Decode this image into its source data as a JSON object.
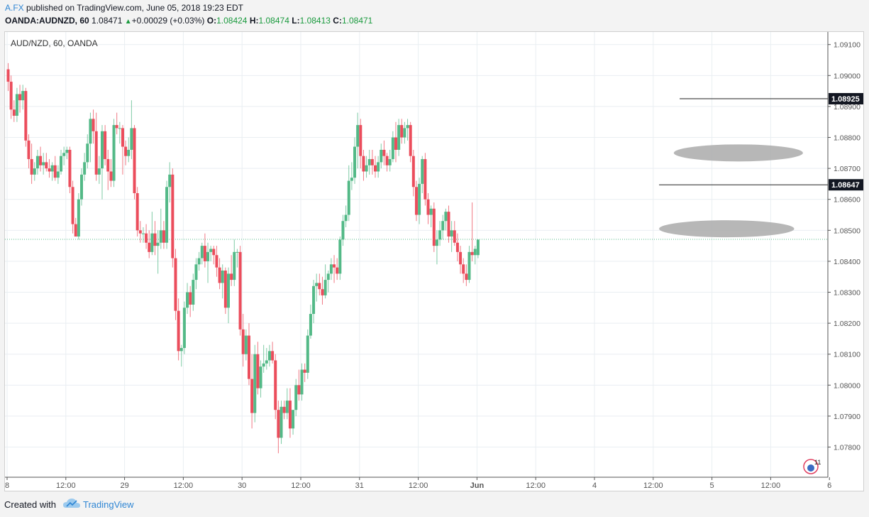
{
  "header": {
    "author": "A.FX",
    "published_text": "published on TradingView.com, June 05, 2018 19:23 EDT",
    "symbol": "OANDA:AUDNZD, 60",
    "last": "1.08471",
    "change": "+0.00029 (+0.03%)",
    "o_label": "O:",
    "o_value": "1.08424",
    "h_label": "H:",
    "h_value": "1.08474",
    "l_label": "L:",
    "l_value": "1.08413",
    "c_label": "C:",
    "c_value": "1.08471"
  },
  "footer": {
    "created_with": "Created with",
    "brand": "TradingView"
  },
  "colors": {
    "up": "#53b987",
    "down": "#eb4d5c",
    "grid": "#e9eef2",
    "axis": "#555555",
    "ellipse": "#aaaaaa"
  },
  "chart_data": {
    "type": "candlestick",
    "title": "AUD/NZD, 60, OANDA",
    "y_range": [
      1.0772,
      1.0912
    ],
    "y_ticks": [
      "1.09100",
      "1.09000",
      "1.08900",
      "1.08800",
      "1.08700",
      "1.08600",
      "1.08500",
      "1.08400",
      "1.08300",
      "1.08200",
      "1.08100",
      "1.08000",
      "1.07900",
      "1.07800"
    ],
    "y_tick_values": [
      1.091,
      1.09,
      1.089,
      1.088,
      1.087,
      1.086,
      1.085,
      1.084,
      1.083,
      1.082,
      1.081,
      1.08,
      1.079,
      1.078
    ],
    "x_ticks": [
      {
        "label": "8",
        "bar": 0
      },
      {
        "label": "12:00",
        "bar": 20
      },
      {
        "label": "29",
        "bar": 40
      },
      {
        "label": "12:00",
        "bar": 60
      },
      {
        "label": "30",
        "bar": 80
      },
      {
        "label": "12:00",
        "bar": 100
      },
      {
        "label": "31",
        "bar": 120
      },
      {
        "label": "12:00",
        "bar": 140
      },
      {
        "label": "Jun",
        "bar": 160
      },
      {
        "label": "12:00",
        "bar": 180
      },
      {
        "label": "4",
        "bar": 200
      },
      {
        "label": "12:00",
        "bar": 220
      },
      {
        "label": "5",
        "bar": 240
      },
      {
        "label": "12:00",
        "bar": 260
      },
      {
        "label": "6",
        "bar": 280
      }
    ],
    "levels": [
      {
        "label": "1.08925",
        "value": 1.08925,
        "from_bar": 229
      },
      {
        "label": "1.08647",
        "value": 1.08647,
        "from_bar": 222
      }
    ],
    "current_price": 1.08471,
    "zones": [
      {
        "value": 1.0875,
        "from_bar": 227,
        "to_bar": 271
      },
      {
        "value": 1.08505,
        "from_bar": 222,
        "to_bar": 268
      }
    ],
    "badge": "11",
    "candles": [
      [
        1.0902,
        1.0904,
        1.0895,
        1.0898
      ],
      [
        1.0898,
        1.09,
        1.0886,
        1.0889
      ],
      [
        1.0889,
        1.0892,
        1.0885,
        1.0887
      ],
      [
        1.0887,
        1.0896,
        1.0885,
        1.0894
      ],
      [
        1.0894,
        1.0897,
        1.0888,
        1.0892
      ],
      [
        1.0892,
        1.0897,
        1.0889,
        1.0895
      ],
      [
        1.0895,
        1.0896,
        1.0877,
        1.0879
      ],
      [
        1.0879,
        1.0881,
        1.087,
        1.0873
      ],
      [
        1.0873,
        1.0878,
        1.0865,
        1.0868
      ],
      [
        1.0868,
        1.0872,
        1.0866,
        1.087
      ],
      [
        1.087,
        1.0876,
        1.0868,
        1.0874
      ],
      [
        1.0874,
        1.0877,
        1.0869,
        1.0871
      ],
      [
        1.0871,
        1.0875,
        1.0868,
        1.0872
      ],
      [
        1.0872,
        1.0875,
        1.0869,
        1.087
      ],
      [
        1.087,
        1.0873,
        1.0867,
        1.0869
      ],
      [
        1.0869,
        1.0872,
        1.0866,
        1.0871
      ],
      [
        1.0871,
        1.0874,
        1.0866,
        1.0867
      ],
      [
        1.0867,
        1.0871,
        1.0865,
        1.0869
      ],
      [
        1.0869,
        1.0876,
        1.0868,
        1.0874
      ],
      [
        1.0874,
        1.0877,
        1.0871,
        1.0875
      ],
      [
        1.0875,
        1.0877,
        1.0873,
        1.0876
      ],
      [
        1.0876,
        1.0877,
        1.0862,
        1.0864
      ],
      [
        1.0864,
        1.0866,
        1.0849,
        1.0852
      ],
      [
        1.0852,
        1.0854,
        1.0848,
        1.0848
      ],
      [
        1.0848,
        1.0862,
        1.0847,
        1.086
      ],
      [
        1.086,
        1.087,
        1.0858,
        1.0868
      ],
      [
        1.0868,
        1.0875,
        1.0866,
        1.0872
      ],
      [
        1.0872,
        1.0881,
        1.087,
        1.0878
      ],
      [
        1.0878,
        1.0888,
        1.0872,
        1.0886
      ],
      [
        1.0886,
        1.0889,
        1.0878,
        1.0882
      ],
      [
        1.0882,
        1.0888,
        1.0866,
        1.0868
      ],
      [
        1.0868,
        1.0874,
        1.0865,
        1.087
      ],
      [
        1.087,
        1.0884,
        1.086,
        1.0882
      ],
      [
        1.0882,
        1.0884,
        1.0871,
        1.0873
      ],
      [
        1.0873,
        1.0876,
        1.0863,
        1.0869
      ],
      [
        1.0869,
        1.0873,
        1.0864,
        1.0866
      ],
      [
        1.0866,
        1.0886,
        1.0864,
        1.0884
      ],
      [
        1.0884,
        1.0888,
        1.0881,
        1.0883
      ],
      [
        1.0883,
        1.0885,
        1.0878,
        1.0883
      ],
      [
        1.0883,
        1.0884,
        1.0868,
        1.0877
      ],
      [
        1.0877,
        1.0879,
        1.0871,
        1.0874
      ],
      [
        1.0874,
        1.088,
        1.0872,
        1.0876
      ],
      [
        1.0876,
        1.0892,
        1.0873,
        1.0883
      ],
      [
        1.0883,
        1.0884,
        1.086,
        1.0862
      ],
      [
        1.0862,
        1.0864,
        1.0848,
        1.085
      ],
      [
        1.085,
        1.0853,
        1.0846,
        1.0849
      ],
      [
        1.0849,
        1.0851,
        1.0846,
        1.0849
      ],
      [
        1.0849,
        1.0852,
        1.0844,
        1.0846
      ],
      [
        1.0846,
        1.085,
        1.0841,
        1.0843
      ],
      [
        1.0843,
        1.0856,
        1.0842,
        1.0849
      ],
      [
        1.0849,
        1.0853,
        1.0842,
        1.0845
      ],
      [
        1.0845,
        1.085,
        1.0836,
        1.0846
      ],
      [
        1.0846,
        1.0857,
        1.0844,
        1.085
      ],
      [
        1.085,
        1.0853,
        1.0844,
        1.0846
      ],
      [
        1.0846,
        1.0866,
        1.0844,
        1.0864
      ],
      [
        1.0864,
        1.0872,
        1.0859,
        1.0868
      ],
      [
        1.0868,
        1.087,
        1.0838,
        1.0841
      ],
      [
        1.0841,
        1.0844,
        1.0821,
        1.0824
      ],
      [
        1.0824,
        1.0828,
        1.0808,
        1.0811
      ],
      [
        1.0811,
        1.0813,
        1.0806,
        1.0812
      ],
      [
        1.0812,
        1.0827,
        1.081,
        1.0825
      ],
      [
        1.0825,
        1.0833,
        1.0823,
        1.083
      ],
      [
        1.083,
        1.0832,
        1.0822,
        1.0826
      ],
      [
        1.0826,
        1.0836,
        1.0824,
        1.0834
      ],
      [
        1.0834,
        1.0841,
        1.0831,
        1.0839
      ],
      [
        1.0839,
        1.0843,
        1.0837,
        1.0841
      ],
      [
        1.0841,
        1.0846,
        1.0839,
        1.0845
      ],
      [
        1.0845,
        1.0849,
        1.0838,
        1.084
      ],
      [
        1.084,
        1.0846,
        1.0833,
        1.0843
      ],
      [
        1.0843,
        1.0845,
        1.084,
        1.0844
      ],
      [
        1.0844,
        1.0845,
        1.0839,
        1.0842
      ],
      [
        1.0842,
        1.0845,
        1.0835,
        1.0838
      ],
      [
        1.0838,
        1.0841,
        1.0831,
        1.0833
      ],
      [
        1.0833,
        1.0839,
        1.0828,
        1.0837
      ],
      [
        1.0837,
        1.0838,
        1.0823,
        1.0825
      ],
      [
        1.0825,
        1.0838,
        1.082,
        1.0836
      ],
      [
        1.0836,
        1.0842,
        1.0832,
        1.0834
      ],
      [
        1.0834,
        1.0847,
        1.0832,
        1.0843
      ],
      [
        1.0843,
        1.0844,
        1.0838,
        1.0843
      ],
      [
        1.0843,
        1.0845,
        1.0816,
        1.0818
      ],
      [
        1.0818,
        1.0823,
        1.0806,
        1.081
      ],
      [
        1.081,
        1.0818,
        1.0808,
        1.0816
      ],
      [
        1.0816,
        1.082,
        1.08,
        1.0802
      ],
      [
        1.0802,
        1.081,
        1.0786,
        1.0791
      ],
      [
        1.0791,
        1.0813,
        1.0788,
        1.081
      ],
      [
        1.081,
        1.0814,
        1.0797,
        1.0799
      ],
      [
        1.0799,
        1.0808,
        1.0796,
        1.0806
      ],
      [
        1.0806,
        1.0813,
        1.0804,
        1.0807
      ],
      [
        1.0807,
        1.0812,
        1.0805,
        1.0808
      ],
      [
        1.0808,
        1.0813,
        1.0806,
        1.0811
      ],
      [
        1.0811,
        1.0814,
        1.0807,
        1.0808
      ],
      [
        1.0808,
        1.081,
        1.0789,
        1.0792
      ],
      [
        1.0792,
        1.0795,
        1.0778,
        1.0783
      ],
      [
        1.0783,
        1.0795,
        1.0781,
        1.0793
      ],
      [
        1.0793,
        1.0795,
        1.0789,
        1.0791
      ],
      [
        1.0791,
        1.0799,
        1.0789,
        1.0795
      ],
      [
        1.0795,
        1.0799,
        1.0783,
        1.0786
      ],
      [
        1.0786,
        1.0792,
        1.0784,
        1.0792
      ],
      [
        1.0792,
        1.0802,
        1.079,
        1.08
      ],
      [
        1.08,
        1.0805,
        1.0795,
        1.0797
      ],
      [
        1.0797,
        1.0807,
        1.0795,
        1.0805
      ],
      [
        1.0805,
        1.0807,
        1.0801,
        1.0804
      ],
      [
        1.0804,
        1.0818,
        1.0802,
        1.0816
      ],
      [
        1.0816,
        1.0826,
        1.0815,
        1.0823
      ],
      [
        1.0823,
        1.0834,
        1.082,
        1.0832
      ],
      [
        1.0832,
        1.0836,
        1.0827,
        1.0833
      ],
      [
        1.0833,
        1.0836,
        1.0829,
        1.0831
      ],
      [
        1.0831,
        1.0835,
        1.0826,
        1.0829
      ],
      [
        1.0829,
        1.0839,
        1.0828,
        1.0834
      ],
      [
        1.0834,
        1.0837,
        1.083,
        1.0836
      ],
      [
        1.0836,
        1.0841,
        1.0834,
        1.0839
      ],
      [
        1.0839,
        1.0842,
        1.0833,
        1.0838
      ],
      [
        1.0838,
        1.0841,
        1.0834,
        1.0836
      ],
      [
        1.0836,
        1.0848,
        1.0834,
        1.0847
      ],
      [
        1.0847,
        1.0855,
        1.0845,
        1.0853
      ],
      [
        1.0853,
        1.0858,
        1.0851,
        1.0855
      ],
      [
        1.0855,
        1.0871,
        1.0853,
        1.0866
      ],
      [
        1.0866,
        1.0872,
        1.0863,
        1.0867
      ],
      [
        1.0867,
        1.088,
        1.0865,
        1.0877
      ],
      [
        1.0877,
        1.0888,
        1.087,
        1.0884
      ],
      [
        1.0884,
        1.0886,
        1.087,
        1.0874
      ],
      [
        1.0874,
        1.0876,
        1.0866,
        1.0869
      ],
      [
        1.0869,
        1.0874,
        1.0867,
        1.0871
      ],
      [
        1.0871,
        1.0876,
        1.0868,
        1.0873
      ],
      [
        1.0873,
        1.0876,
        1.0868,
        1.0871
      ],
      [
        1.0871,
        1.0874,
        1.0867,
        1.0869
      ],
      [
        1.0869,
        1.0874,
        1.0867,
        1.0872
      ],
      [
        1.0872,
        1.0878,
        1.087,
        1.0876
      ],
      [
        1.0876,
        1.0879,
        1.0871,
        1.0874
      ],
      [
        1.0874,
        1.0875,
        1.0869,
        1.0871
      ],
      [
        1.0871,
        1.0876,
        1.0869,
        1.0873
      ],
      [
        1.0873,
        1.0882,
        1.0872,
        1.088
      ],
      [
        1.088,
        1.0885,
        1.0872,
        1.0876
      ],
      [
        1.0876,
        1.0886,
        1.0874,
        1.0884
      ],
      [
        1.0884,
        1.0886,
        1.0878,
        1.088
      ],
      [
        1.088,
        1.0885,
        1.0878,
        1.0883
      ],
      [
        1.0883,
        1.0886,
        1.0879,
        1.0884
      ],
      [
        1.0884,
        1.0885,
        1.0872,
        1.0874
      ],
      [
        1.0874,
        1.0876,
        1.0861,
        1.0864
      ],
      [
        1.0864,
        1.0866,
        1.0853,
        1.0855
      ],
      [
        1.0855,
        1.0867,
        1.0852,
        1.0865
      ],
      [
        1.0865,
        1.0874,
        1.0862,
        1.0873
      ],
      [
        1.0873,
        1.0875,
        1.0858,
        1.086
      ],
      [
        1.086,
        1.0862,
        1.0852,
        1.0855
      ],
      [
        1.0855,
        1.0858,
        1.0851,
        1.0857
      ],
      [
        1.0857,
        1.0859,
        1.0843,
        1.0845
      ],
      [
        1.0845,
        1.085,
        1.0839,
        1.0847
      ],
      [
        1.0847,
        1.0853,
        1.0845,
        1.085
      ],
      [
        1.085,
        1.0855,
        1.0847,
        1.0853
      ],
      [
        1.0853,
        1.0857,
        1.085,
        1.0856
      ],
      [
        1.0856,
        1.0858,
        1.0846,
        1.0848
      ],
      [
        1.0848,
        1.0853,
        1.0843,
        1.085
      ],
      [
        1.085,
        1.0853,
        1.0845,
        1.0846
      ],
      [
        1.0846,
        1.0849,
        1.084,
        1.0843
      ],
      [
        1.0843,
        1.0845,
        1.0836,
        1.0839
      ],
      [
        1.0839,
        1.0841,
        1.0833,
        1.0836
      ],
      [
        1.0836,
        1.0839,
        1.0832,
        1.0834
      ],
      [
        1.0834,
        1.0845,
        1.0833,
        1.0843
      ],
      [
        1.0843,
        1.0859,
        1.084,
        1.0842
      ],
      [
        1.0842,
        1.0845,
        1.0839,
        1.0844
      ],
      [
        1.0842,
        1.0847,
        1.0841,
        1.0847
      ]
    ]
  }
}
